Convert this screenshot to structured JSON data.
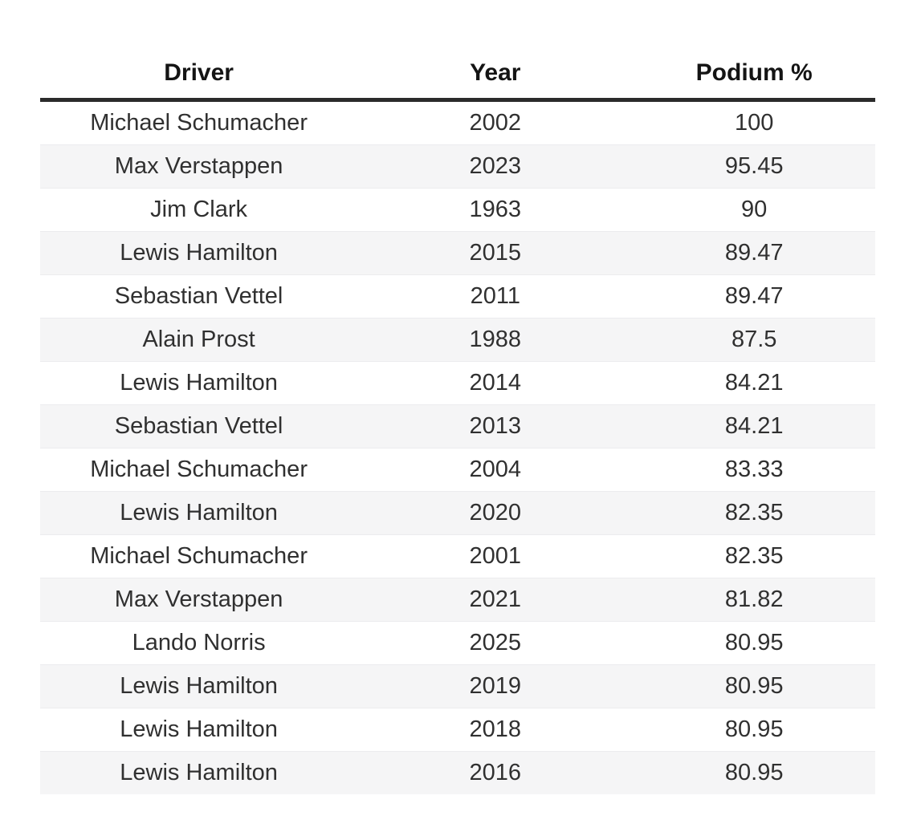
{
  "chart_data": {
    "type": "table",
    "title": "",
    "columns": [
      "Driver",
      "Year",
      "Podium %"
    ],
    "rows": [
      [
        "Michael Schumacher",
        "2002",
        "100"
      ],
      [
        "Max Verstappen",
        "2023",
        "95.45"
      ],
      [
        "Jim Clark",
        "1963",
        "90"
      ],
      [
        "Lewis Hamilton",
        "2015",
        "89.47"
      ],
      [
        "Sebastian Vettel",
        "2011",
        "89.47"
      ],
      [
        "Alain Prost",
        "1988",
        "87.5"
      ],
      [
        "Lewis Hamilton",
        "2014",
        "84.21"
      ],
      [
        "Sebastian Vettel",
        "2013",
        "84.21"
      ],
      [
        "Michael Schumacher",
        "2004",
        "83.33"
      ],
      [
        "Lewis Hamilton",
        "2020",
        "82.35"
      ],
      [
        "Michael Schumacher",
        "2001",
        "82.35"
      ],
      [
        "Max Verstappen",
        "2021",
        "81.82"
      ],
      [
        "Lando Norris",
        "2025",
        "80.95"
      ],
      [
        "Lewis Hamilton",
        "2019",
        "80.95"
      ],
      [
        "Lewis Hamilton",
        "2018",
        "80.95"
      ],
      [
        "Lewis Hamilton",
        "2016",
        "80.95"
      ]
    ],
    "layout": {
      "stripes": "even rows shaded",
      "alignment": "all columns centered",
      "header_rule": "thick dark line under header"
    }
  },
  "colors": {
    "background": "#ffffff",
    "stripe": "#f5f5f6",
    "row_border": "#ececee",
    "header_rule": "#2b2b2b",
    "header_text": "#141414",
    "text": "#303030"
  }
}
